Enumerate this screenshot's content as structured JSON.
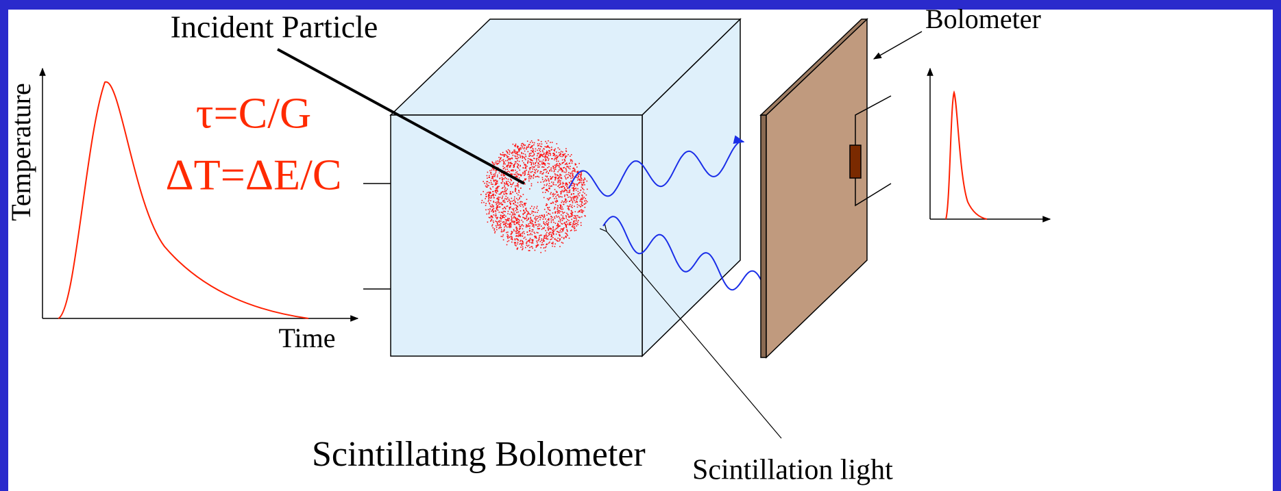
{
  "labels": {
    "incident_particle": "Incident Particle",
    "bolometer": "Bolometer",
    "y_axis": "Temperature",
    "x_axis": "Time",
    "time_constant": "τ=C/G",
    "temperature_rise": "ΔT=ΔE/C",
    "crystal": "Scintillating Bolometer",
    "light": "Scintillation light"
  }
}
